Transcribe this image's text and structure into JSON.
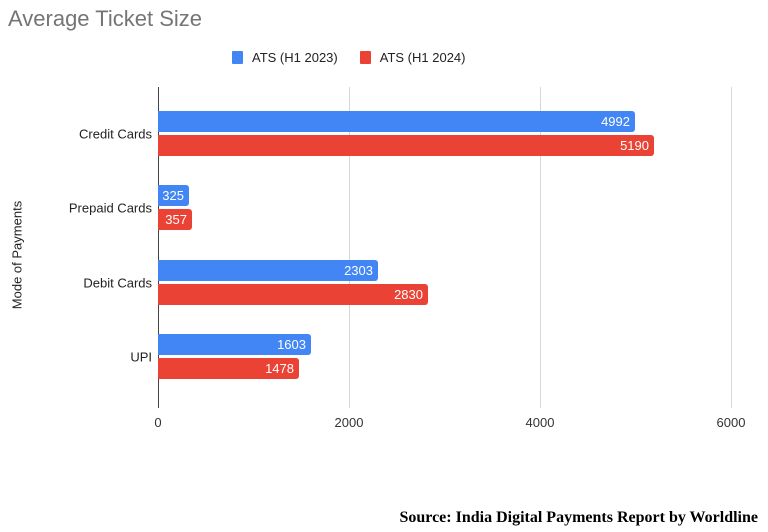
{
  "chart_data": {
    "type": "bar",
    "orientation": "horizontal",
    "title": "Average Ticket Size",
    "xlabel": "",
    "ylabel": "Mode of Payments",
    "categories": [
      "Credit Cards",
      "Prepaid Cards",
      "Debit Cards",
      "UPI"
    ],
    "series": [
      {
        "name": "ATS (H1 2023)",
        "color": "#4285f4",
        "values": [
          4992,
          325,
          2303,
          1603
        ]
      },
      {
        "name": "ATS (H1 2024)",
        "color": "#ea4335",
        "values": [
          5190,
          357,
          2830,
          1478
        ]
      }
    ],
    "xlim": [
      0,
      6000
    ],
    "xticks": [
      "0",
      "2000",
      "4000",
      "6000"
    ],
    "grid": true,
    "legend_position": "top",
    "data_labels": true
  },
  "source": "Source: India Digital Payments Report by Worldline"
}
